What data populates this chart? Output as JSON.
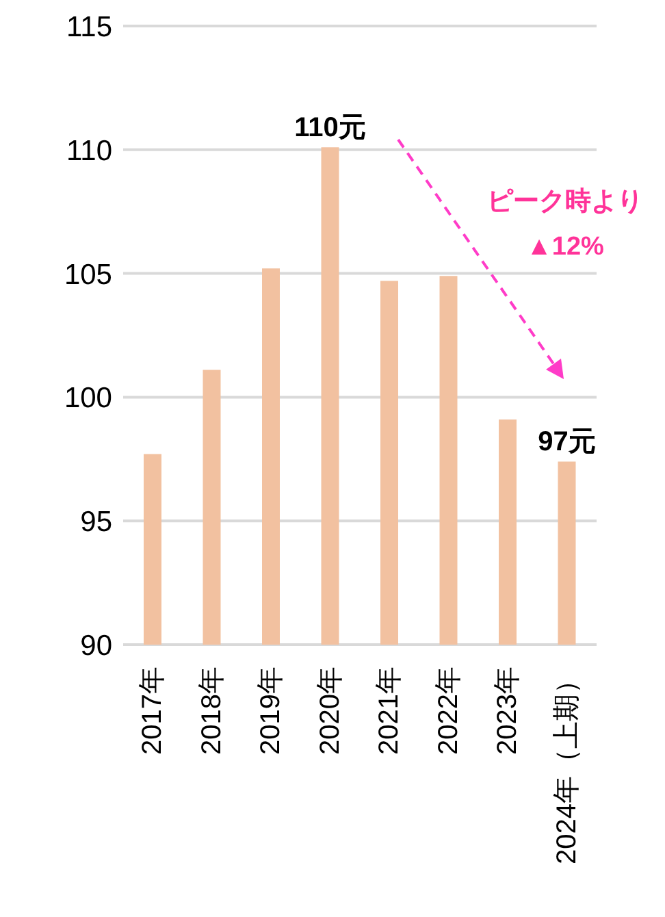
{
  "chart_data": {
    "type": "bar",
    "categories": [
      "2017年",
      "2018年",
      "2019年",
      "2020年",
      "2021年",
      "2022年",
      "2023年",
      "2024年（上期）"
    ],
    "values": [
      97.7,
      101.1,
      105.2,
      110.1,
      104.7,
      104.9,
      99.1,
      97.4
    ],
    "value_labels": [
      null,
      null,
      null,
      "110元",
      null,
      null,
      null,
      "97元"
    ],
    "color": "#f2c1a0",
    "ylim": [
      90,
      115
    ],
    "yticks": [
      90,
      95,
      100,
      105,
      110,
      115
    ],
    "grid": "y",
    "annotations": [
      "ピーク時より\n▲12%"
    ]
  }
}
